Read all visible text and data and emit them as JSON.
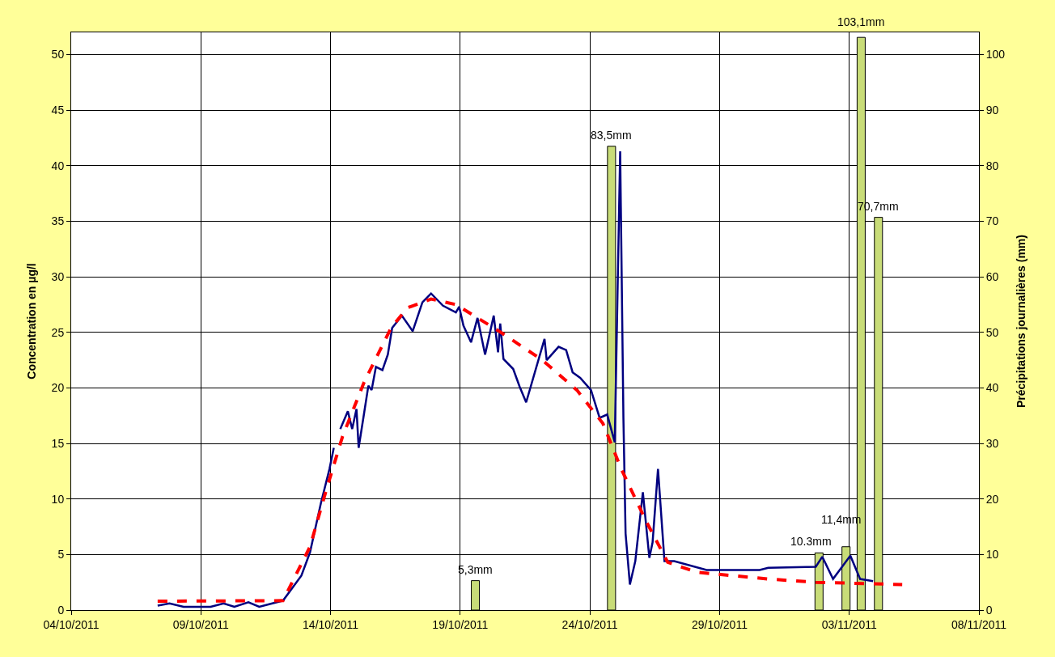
{
  "chart_data": {
    "type": "line",
    "ylabel": "Concentration en µg/l",
    "y2label": "Précipitations journalières (mm)",
    "xlim": [
      "2011-10-04",
      "2011-11-08"
    ],
    "xticks": [
      {
        "value": "2011-10-04",
        "label": "04/10/2011"
      },
      {
        "value": "2011-10-09",
        "label": "09/10/2011"
      },
      {
        "value": "2011-10-14",
        "label": "14/10/2011"
      },
      {
        "value": "2011-10-19",
        "label": "19/10/2011"
      },
      {
        "value": "2011-10-24",
        "label": "24/10/2011"
      },
      {
        "value": "2011-10-29",
        "label": "29/10/2011"
      },
      {
        "value": "2011-11-03",
        "label": "03/11/2011"
      },
      {
        "value": "2011-11-08",
        "label": "08/11/2011"
      }
    ],
    "ylim": [
      0,
      52
    ],
    "yticks": [
      0,
      5,
      10,
      15,
      20,
      25,
      30,
      35,
      40,
      45,
      50
    ],
    "y2lim": [
      0,
      104
    ],
    "y2ticks": [
      0,
      10,
      20,
      30,
      40,
      50,
      60,
      70,
      80,
      90,
      100
    ],
    "grid": true,
    "series": [
      {
        "type": "bar",
        "axis": "y2",
        "color": "#c8dc78",
        "x": [
          "2011-10-19T14:00",
          "2011-10-24T20:00",
          "2011-11-01T20:00",
          "2011-11-02T21:00",
          "2011-11-03T11:00",
          "2011-11-04T03:00"
        ],
        "values": [
          5.3,
          83.5,
          10.3,
          11.4,
          103.1,
          70.7
        ],
        "value_labels": [
          "5,3mm",
          "83,5mm",
          "10.3mm",
          "11,4mm",
          "103,1mm",
          "70,7mm"
        ]
      },
      {
        "color": "#000080",
        "line_style": "solid",
        "x": [
          "2011-10-07T08:00",
          "2011-10-07T19:00",
          "2011-10-08T08:00",
          "2011-10-09T09:00",
          "2011-10-09T21:00",
          "2011-10-10T07:00",
          "2011-10-10T20:00",
          "2011-10-11T06:00",
          "2011-10-12T04:00",
          "2011-10-12T21:00",
          "2011-10-13T05:00",
          "2011-10-13T15:00",
          "2011-10-13T23:00",
          "2011-10-14T03:00",
          "2011-10-14T05:00",
          "2011-10-14T09:00",
          "2011-10-14T16:00",
          "2011-10-14T20:00",
          "2011-10-15T00:00",
          "2011-10-15T02:00",
          "2011-10-15T07:00",
          "2011-10-15T11:00",
          "2011-10-15T14:00",
          "2011-10-15T18:00",
          "2011-10-16T00:00",
          "2011-10-16T05:00",
          "2011-10-16T09:00",
          "2011-10-16T18:00",
          "2011-10-17T04:00",
          "2011-10-17T13:00",
          "2011-10-17T21:00",
          "2011-10-18T08:00",
          "2011-10-18T20:00",
          "2011-10-18T23:00",
          "2011-10-19T03:00",
          "2011-10-19T10:00",
          "2011-10-19T16:00",
          "2011-10-19T23:00",
          "2011-10-20T07:00",
          "2011-10-20T11:00",
          "2011-10-20T13:00",
          "2011-10-20T16:00",
          "2011-10-21T01:00",
          "2011-10-21T07:00",
          "2011-10-21T13:00",
          "2011-10-22T06:00",
          "2011-10-22T08:00",
          "2011-10-22T19:00",
          "2011-10-23T02:00",
          "2011-10-23T08:00",
          "2011-10-23T15:00",
          "2011-10-24T01:00",
          "2011-10-24T09:00",
          "2011-10-24T16:00",
          "2011-10-24T23:00",
          "2011-10-25T04:00",
          "2011-10-25T07:00",
          "2011-10-25T09:00",
          "2011-10-25T13:00",
          "2011-10-25T18:00",
          "2011-10-26T01:00",
          "2011-10-26T07:00",
          "2011-10-26T10:00",
          "2011-10-26T15:00",
          "2011-10-26T21:00",
          "2011-10-27T06:00",
          "2011-10-28T12:00",
          "2011-10-29T08:00",
          "2011-10-30T13:00",
          "2011-10-30T21:00",
          "2011-11-01T17:00",
          "2011-11-01T23:00",
          "2011-11-02T09:00",
          "2011-11-03T01:00",
          "2011-11-03T10:00",
          "2011-11-03T22:00"
        ],
        "values": [
          0.4,
          0.6,
          0.3,
          0.3,
          0.6,
          0.3,
          0.7,
          0.3,
          0.85,
          3.1,
          5.2,
          9.6,
          12.7,
          14.6,
          null,
          16.3,
          17.9,
          16.3,
          18.1,
          14.6,
          17.7,
          20.2,
          19.8,
          21.9,
          21.6,
          23.0,
          25.4,
          26.5,
          25.1,
          27.7,
          28.5,
          27.4,
          26.8,
          27.3,
          25.6,
          24.1,
          26.3,
          23.0,
          26.5,
          23.2,
          25.8,
          22.6,
          21.7,
          20.1,
          18.7,
          24.4,
          22.5,
          23.7,
          23.4,
          21.4,
          20.9,
          19.8,
          17.3,
          17.6,
          15.1,
          41.3,
          17.3,
          6.9,
          2.3,
          4.4,
          10.6,
          4.7,
          6.1,
          12.7,
          4.4,
          4.4,
          3.6,
          3.6,
          3.6,
          3.8,
          3.9,
          4.8,
          2.8,
          4.9,
          2.8,
          2.6
        ]
      },
      {
        "color": "#ff0000",
        "line_style": "dashed",
        "x": [
          "2011-10-07T08:00",
          "2011-10-12T04:00",
          "2011-10-13T05:00",
          "2011-10-13T20:00",
          "2011-10-14T11:00",
          "2011-10-15T07:00",
          "2011-10-16T08:00",
          "2011-10-16T23:00",
          "2011-10-17T21:00",
          "2011-10-18T20:00",
          "2011-10-20T12:00",
          "2011-10-22T04:00",
          "2011-10-23T12:00",
          "2011-10-24T12:00",
          "2011-10-25T05:00",
          "2011-10-26T04:00",
          "2011-10-27T00:00",
          "2011-10-28T03:00",
          "2011-10-30T21:00",
          "2011-11-01T17:00",
          "2011-11-05T01:00"
        ],
        "values": [
          0.8,
          0.85,
          5.7,
          10.8,
          15.6,
          20.5,
          25.4,
          27.2,
          28.0,
          27.5,
          25.1,
          22.5,
          19.8,
          16.8,
          12.7,
          8.0,
          4.3,
          3.4,
          2.8,
          2.5,
          2.3
        ]
      }
    ]
  }
}
